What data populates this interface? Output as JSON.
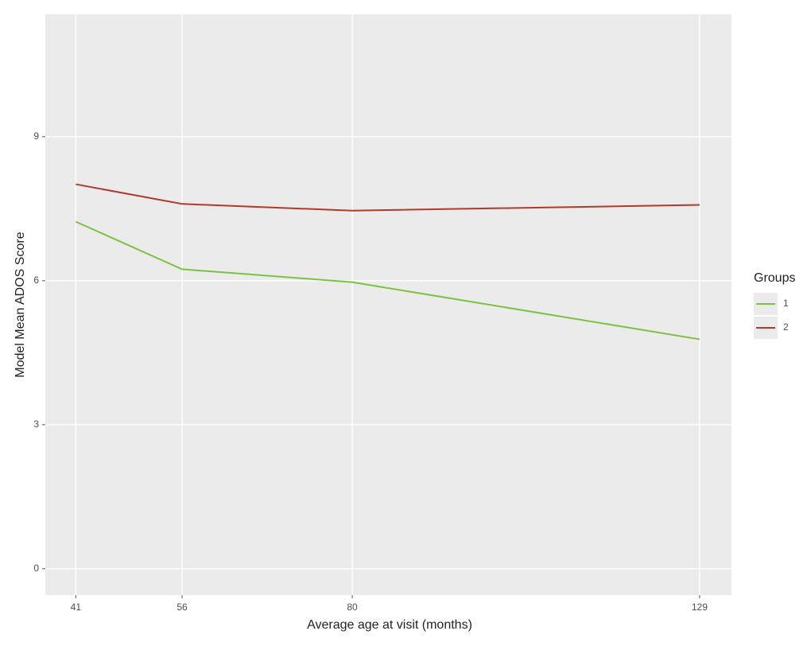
{
  "chart_data": {
    "type": "line",
    "x_label": "Average age at visit (months)",
    "y_label": "Model Mean ADOS Score",
    "x": [
      41,
      56,
      80,
      129
    ],
    "series": [
      {
        "name": "1",
        "color": "#7cc242",
        "values": [
          7.23,
          6.24,
          5.97,
          4.78
        ]
      },
      {
        "name": "2",
        "color": "#b03a2e",
        "values": [
          8.01,
          7.6,
          7.46,
          7.58
        ]
      }
    ],
    "xlim": [
      36.7,
      133.5
    ],
    "xticks": [
      41,
      56,
      80,
      129
    ],
    "ylim": [
      -0.55,
      11.55
    ],
    "yticks": [
      0,
      3,
      6,
      9
    ],
    "grid": true,
    "legend_title": "Groups",
    "legend_position": "right"
  }
}
